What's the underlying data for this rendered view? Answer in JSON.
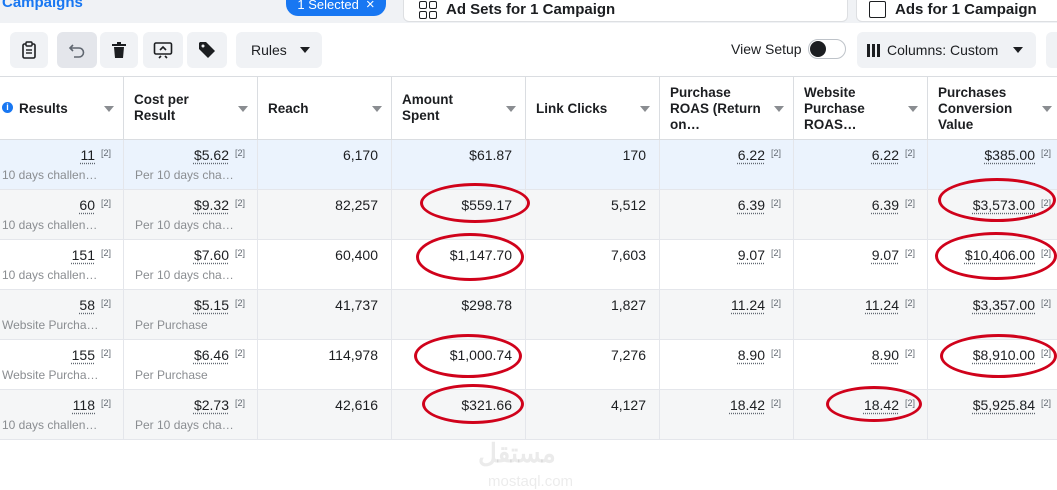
{
  "tabs": {
    "campaigns_title": "Campaigns",
    "selected_label": "1 Selected",
    "selected_close": "×",
    "ad_sets_label": "Ad Sets for 1 Campaign",
    "ads_label": "Ads for 1 Campaign"
  },
  "toolbar": {
    "rules_label": "Rules",
    "view_setup_label": "View Setup",
    "columns_label": "Columns: Custom"
  },
  "columns": [
    "Results",
    "Cost per Result",
    "Reach",
    "Amount Spent",
    "Link Clicks",
    "Purchase ROAS (Return on…",
    "Website Purchase ROAS…",
    "Purchases Conversion Value"
  ],
  "footnote": "[2]",
  "rows": [
    {
      "results": "11",
      "results_sub": "10 days challen…",
      "cpr": "$5.62",
      "cpr_sub": "Per 10 days cha…",
      "reach": "6,170",
      "spent": "$61.87",
      "clicks": "170",
      "roas": "6.22",
      "wroas": "6.22",
      "value": "$385.00"
    },
    {
      "results": "60",
      "results_sub": "10 days challen…",
      "cpr": "$9.32",
      "cpr_sub": "Per 10 days cha…",
      "reach": "82,257",
      "spent": "$559.17",
      "clicks": "5,512",
      "roas": "6.39",
      "wroas": "6.39",
      "value": "$3,573.00"
    },
    {
      "results": "151",
      "results_sub": "10 days challen…",
      "cpr": "$7.60",
      "cpr_sub": "Per 10 days cha…",
      "reach": "60,400",
      "spent": "$1,147.70",
      "clicks": "7,603",
      "roas": "9.07",
      "wroas": "9.07",
      "value": "$10,406.00"
    },
    {
      "results": "58",
      "results_sub": "Website Purcha…",
      "cpr": "$5.15",
      "cpr_sub": "Per Purchase",
      "reach": "41,737",
      "spent": "$298.78",
      "clicks": "1,827",
      "roas": "11.24",
      "wroas": "11.24",
      "value": "$3,357.00"
    },
    {
      "results": "155",
      "results_sub": "Website Purcha…",
      "cpr": "$6.46",
      "cpr_sub": "Per Purchase",
      "reach": "114,978",
      "spent": "$1,000.74",
      "clicks": "7,276",
      "roas": "8.90",
      "wroas": "8.90",
      "value": "$8,910.00"
    },
    {
      "results": "118",
      "results_sub": "10 days challen…",
      "cpr": "$2.73",
      "cpr_sub": "Per 10 days cha…",
      "reach": "42,616",
      "spent": "$321.66",
      "clicks": "4,127",
      "roas": "18.42",
      "wroas": "18.42",
      "value": "$5,925.84"
    }
  ],
  "watermark": {
    "text": "مستقل",
    "url": "mostaql.com"
  },
  "colors": {
    "accent": "#1877f2",
    "annotation": "#d0021b",
    "highlight_row": "#ebf3fd"
  }
}
